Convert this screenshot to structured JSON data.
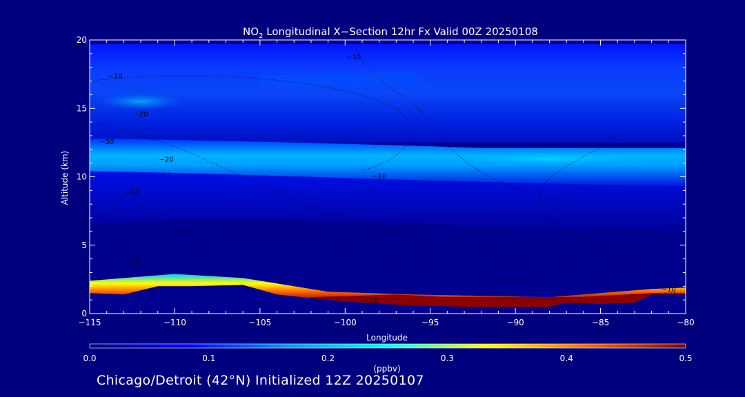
{
  "chart_data": {
    "type": "heatmap",
    "title_prefix": "NO",
    "title_subscript": "2",
    "title_suffix": " Longitudinal X−Section 12hr  Fx Valid 00Z 20250108",
    "xlabel": "Longitude",
    "ylabel": "Altitude (km)",
    "xlim": [
      -115,
      -80
    ],
    "ylim": [
      0,
      20
    ],
    "x_ticks": [
      {
        "value": -115,
        "label": "−115"
      },
      {
        "value": -110,
        "label": "−110"
      },
      {
        "value": -105,
        "label": "−105"
      },
      {
        "value": -100,
        "label": "−100"
      },
      {
        "value": -95,
        "label": "−95"
      },
      {
        "value": -90,
        "label": "−90"
      },
      {
        "value": -85,
        "label": "−85"
      },
      {
        "value": -80,
        "label": "−80"
      }
    ],
    "y_ticks": [
      {
        "value": 0,
        "label": "0"
      },
      {
        "value": 5,
        "label": "5"
      },
      {
        "value": 10,
        "label": "10"
      },
      {
        "value": 15,
        "label": "15"
      },
      {
        "value": 20,
        "label": "20"
      }
    ],
    "terrain": [
      {
        "lon": -115,
        "alt": 1.5
      },
      {
        "lon": -113,
        "alt": 1.4
      },
      {
        "lon": -111,
        "alt": 2.0
      },
      {
        "lon": -109,
        "alt": 2.0
      },
      {
        "lon": -106,
        "alt": 2.1
      },
      {
        "lon": -104,
        "alt": 1.4
      },
      {
        "lon": -101,
        "alt": 1.0
      },
      {
        "lon": -99,
        "alt": 0.8
      },
      {
        "lon": -96,
        "alt": 0.6
      },
      {
        "lon": -93,
        "alt": 0.5
      },
      {
        "lon": -88,
        "alt": 0.5
      },
      {
        "lon": -87,
        "alt": 0.8
      },
      {
        "lon": -85,
        "alt": 0.7
      },
      {
        "lon": -83,
        "alt": 0.8
      },
      {
        "lon": -82,
        "alt": 1.4
      },
      {
        "lon": -80,
        "alt": 1.4
      }
    ],
    "contour_labels": [
      {
        "lon": -113.5,
        "alt": 17.2,
        "label": "−10"
      },
      {
        "lon": -112,
        "alt": 14.4,
        "label": "−20"
      },
      {
        "lon": -114,
        "alt": 12.4,
        "label": "−30"
      },
      {
        "lon": -110.5,
        "alt": 11.1,
        "label": "−20"
      },
      {
        "lon": -112.5,
        "alt": 8.7,
        "label": "−10"
      },
      {
        "lon": -109.5,
        "alt": 5.8,
        "label": "−10"
      },
      {
        "lon": -112.5,
        "alt": 3.7,
        "label": "−10"
      },
      {
        "lon": -98,
        "alt": 9.9,
        "label": "−10"
      },
      {
        "lon": -99.5,
        "alt": 18.6,
        "label": "−10"
      },
      {
        "lon": -98.5,
        "alt": 0.8,
        "label": "−10"
      },
      {
        "lon": -81,
        "alt": 1.6,
        "label": "−10"
      }
    ],
    "colorbar": {
      "label": "(ppbv)",
      "range": [
        0.0,
        0.5
      ],
      "ticks": [
        {
          "value": 0.0,
          "label": "0.0"
        },
        {
          "value": 0.1,
          "label": "0.1"
        },
        {
          "value": 0.2,
          "label": "0.2"
        },
        {
          "value": 0.3,
          "label": "0.3"
        },
        {
          "value": 0.4,
          "label": "0.4"
        },
        {
          "value": 0.5,
          "label": "0.5"
        }
      ],
      "colors": [
        "#000080",
        "#0000ff",
        "#0096ff",
        "#00ffff",
        "#ffff00",
        "#ff6600",
        "#800000"
      ]
    }
  },
  "footer": {
    "text": "Chicago/Detroit (42°N) Initialized 12Z 20250107"
  }
}
